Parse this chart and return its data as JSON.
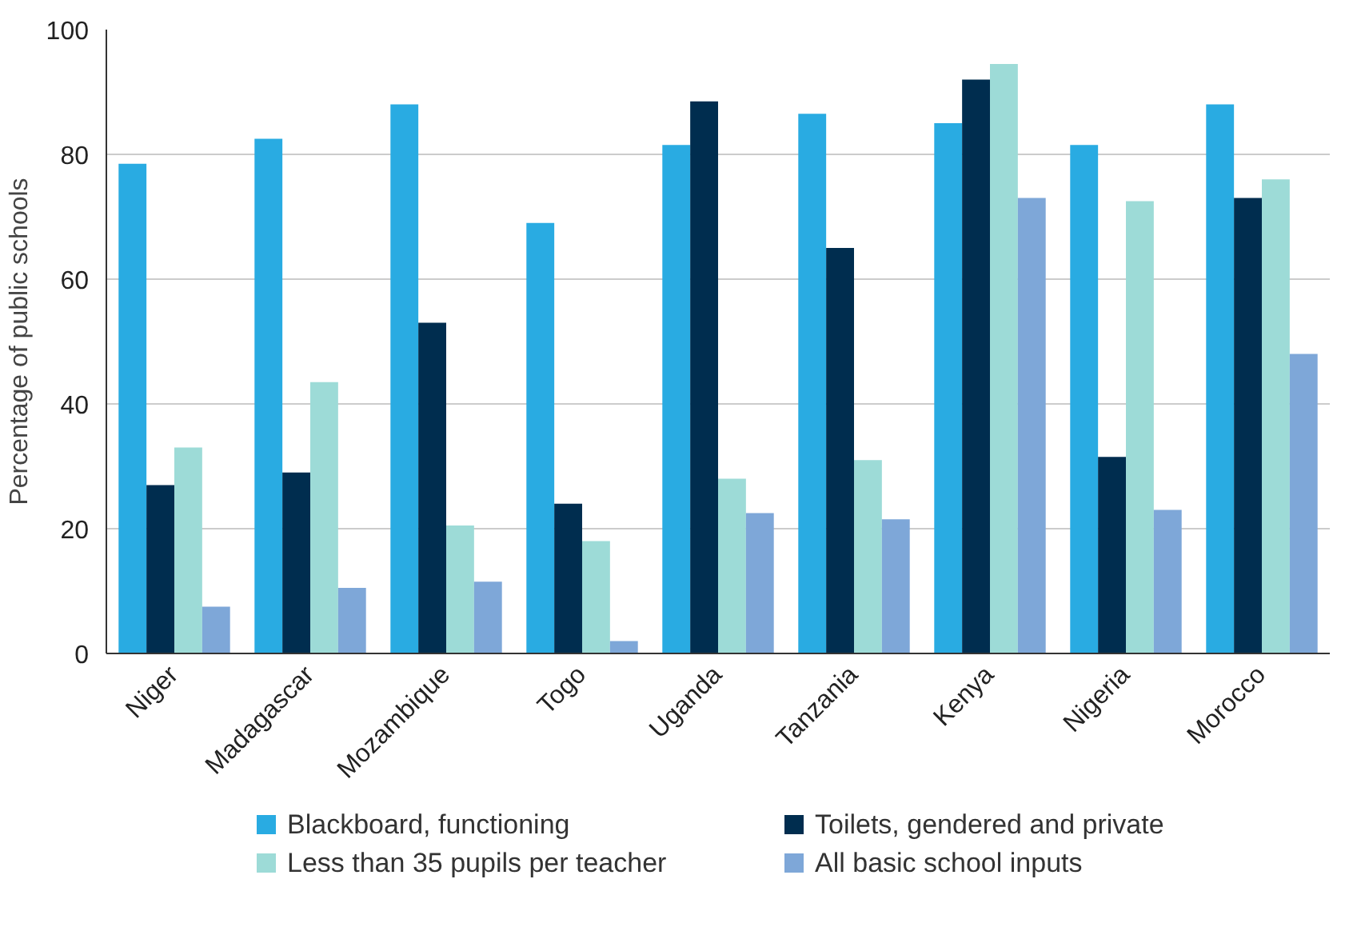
{
  "chart_data": {
    "type": "bar",
    "ylabel": "Percentage of public schools",
    "categories": [
      "Niger",
      "Madagascar",
      "Mozambique",
      "Togo",
      "Uganda",
      "Tanzania",
      "Kenya",
      "Nigeria",
      "Morocco"
    ],
    "series": [
      {
        "name": "Blackboard, functioning",
        "color": "#29abe2",
        "values": [
          78.5,
          82.5,
          88,
          69,
          81.5,
          86.5,
          85,
          81.5,
          88
        ]
      },
      {
        "name": "Toilets, gendered and private",
        "color": "#002d4f",
        "values": [
          27,
          29,
          53,
          24,
          88.5,
          65,
          92,
          31.5,
          73
        ]
      },
      {
        "name": "Less than 35 pupils per teacher",
        "color": "#9ddbd7",
        "values": [
          33,
          43.5,
          20.5,
          18,
          28,
          31,
          94.5,
          72.5,
          76
        ]
      },
      {
        "name": "All basic school inputs",
        "color": "#7ea7d8",
        "values": [
          7.5,
          10.5,
          11.5,
          2,
          22.5,
          21.5,
          73,
          23,
          48
        ]
      }
    ],
    "ylim": [
      0,
      100
    ],
    "yticks": [
      0,
      20,
      40,
      60,
      80,
      100
    ],
    "grid": "y",
    "legend": "bottom"
  }
}
